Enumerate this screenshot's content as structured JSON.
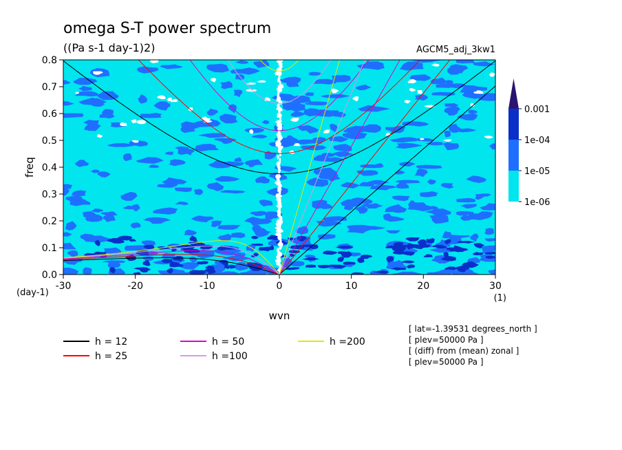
{
  "chart_data": {
    "type": "heatmap",
    "title": "omega S-T power spectrum",
    "subtitle": "((Pa s-1 day-1)2)",
    "run_label": "AGCM5_adj_3kw1",
    "xlabel": "wvn",
    "ylabel": "freq",
    "x_unit": "(1)",
    "y_unit": "(day-1)",
    "xlim": [
      -30,
      30
    ],
    "ylim": [
      0,
      0.8
    ],
    "x_ticks": [
      "-30",
      "-20",
      "-10",
      "0",
      "10",
      "20",
      "30"
    ],
    "y_ticks": [
      "0.0",
      "0.1",
      "0.2",
      "0.3",
      "0.4",
      "0.5",
      "0.6",
      "0.7",
      "0.8"
    ],
    "colorbar": {
      "scale": "log",
      "levels": [
        "1e-06",
        "1e-05",
        "1e-04",
        "0.001"
      ],
      "colors": [
        "#00e5ee",
        "#1e6fff",
        "#0a2fc8",
        "#2a1470"
      ]
    },
    "dispersion_curves": [
      {
        "name": "h = 12",
        "h": 12,
        "color": "#000000"
      },
      {
        "name": "h = 25",
        "h": 25,
        "color": "#ff0000"
      },
      {
        "name": "h = 50",
        "h": 50,
        "color": "#e000c8"
      },
      {
        "name": "h =100",
        "h": 100,
        "color": "#dc96e6"
      },
      {
        "name": "h =200",
        "h": 200,
        "color": "#e6e600"
      }
    ],
    "info_lines": [
      "[ lat=-1.39531 degrees_north ]",
      "[ plev=50000 Pa ]",
      "[ (diff) from (mean) zonal ]",
      "[ plev=50000 Pa ]"
    ]
  }
}
